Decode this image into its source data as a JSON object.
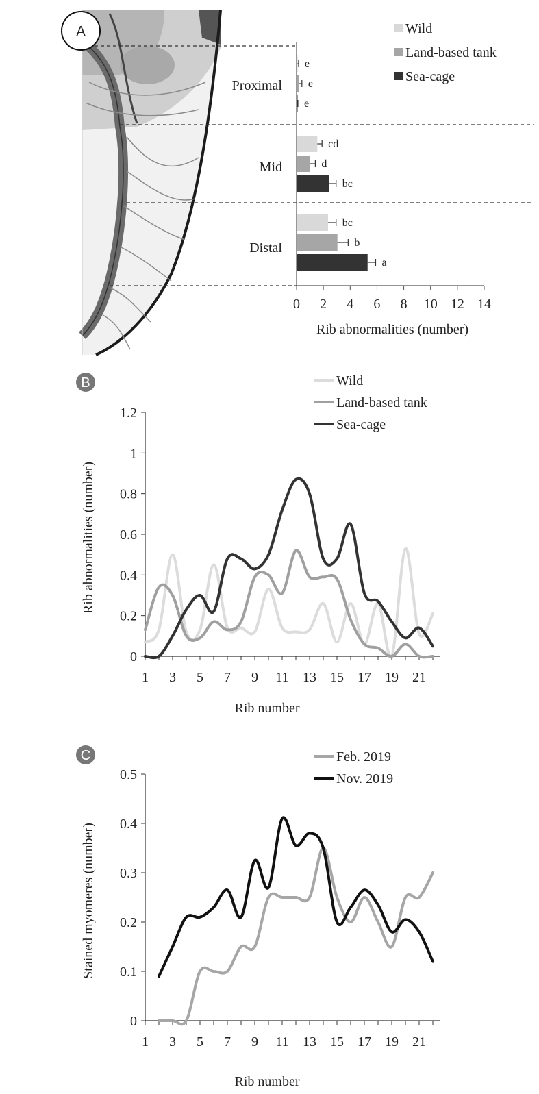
{
  "panel_a": {
    "label": "A",
    "legend": [
      {
        "name": "Wild",
        "color": "#d9d9d9"
      },
      {
        "name": "Land-based tank",
        "color": "#a6a6a6"
      },
      {
        "name": "Sea-cage",
        "color": "#333333"
      }
    ],
    "xlabel": "Rib abnormalities (number)"
  },
  "panel_b": {
    "label": "B",
    "ylabel": "Rib abnormalities (number)",
    "xlabel": "Rib number"
  },
  "panel_c": {
    "label": "C",
    "ylabel": "Stained myomeres (number)",
    "xlabel": "Rib number"
  },
  "chart_data": [
    {
      "type": "bar",
      "orientation": "horizontal",
      "groups": [
        "Proximal",
        "Mid",
        "Distal"
      ],
      "series": [
        {
          "name": "Wild",
          "values": [
            0.05,
            1.55,
            2.35
          ],
          "errors": [
            0.1,
            0.35,
            0.6
          ],
          "letters": [
            "e",
            "cd",
            "bc"
          ],
          "color": "#d9d9d9"
        },
        {
          "name": "Land-based tank",
          "values": [
            0.2,
            1.0,
            3.05
          ],
          "errors": [
            0.2,
            0.4,
            0.8
          ],
          "letters": [
            "e",
            "d",
            "b"
          ],
          "color": "#a6a6a6"
        },
        {
          "name": "Sea-cage",
          "values": [
            0.05,
            2.45,
            5.3
          ],
          "errors": [
            0.05,
            0.5,
            0.6
          ],
          "letters": [
            "e",
            "bc",
            "a"
          ],
          "color": "#333333"
        }
      ],
      "xlim": [
        0,
        14
      ],
      "xticks": [
        "0",
        "2",
        "4",
        "6",
        "8",
        "10",
        "12",
        "14"
      ],
      "xlabel": "Rib abnormalities (number)",
      "legend_position": "top-right"
    },
    {
      "type": "line",
      "x": [
        1,
        2,
        3,
        4,
        5,
        6,
        7,
        8,
        9,
        10,
        11,
        12,
        13,
        14,
        15,
        16,
        17,
        18,
        19,
        20,
        21,
        22
      ],
      "series": [
        {
          "name": "Wild",
          "color": "#dcdcdc",
          "values": [
            0.07,
            0.13,
            0.5,
            0.12,
            0.13,
            0.45,
            0.14,
            0.14,
            0.12,
            0.33,
            0.14,
            0.12,
            0.13,
            0.26,
            0.07,
            0.26,
            0.06,
            0.26,
            0.0,
            0.53,
            0.11,
            0.21
          ]
        },
        {
          "name": "Land-based tank",
          "color": "#a0a0a0",
          "values": [
            0.13,
            0.34,
            0.3,
            0.1,
            0.09,
            0.17,
            0.13,
            0.17,
            0.39,
            0.4,
            0.31,
            0.52,
            0.39,
            0.39,
            0.38,
            0.18,
            0.06,
            0.04,
            0.0,
            0.06,
            0.0,
            0.0
          ]
        },
        {
          "name": "Sea-cage",
          "color": "#333333",
          "values": [
            0,
            0,
            0.1,
            0.23,
            0.3,
            0.22,
            0.48,
            0.48,
            0.43,
            0.5,
            0.72,
            0.87,
            0.8,
            0.48,
            0.48,
            0.65,
            0.31,
            0.27,
            0.17,
            0.09,
            0.14,
            0.05
          ]
        }
      ],
      "ylim": [
        0,
        1.2
      ],
      "yticks": [
        "0",
        "0.2",
        "0.4",
        "0.6",
        "0.8",
        "1",
        "1.2"
      ],
      "xticks": [
        "1",
        "3",
        "5",
        "7",
        "9",
        "11",
        "13",
        "15",
        "17",
        "19",
        "21"
      ],
      "xlabel": "Rib number",
      "ylabel": "Rib abnormalities (number)",
      "legend_position": "top-right"
    },
    {
      "type": "line",
      "x": [
        2,
        3,
        4,
        5,
        6,
        7,
        8,
        9,
        10,
        11,
        12,
        13,
        14,
        15,
        16,
        17,
        18,
        19,
        20,
        21,
        22
      ],
      "series": [
        {
          "name": "Feb. 2019",
          "color": "#a6a6a6",
          "values": [
            0,
            0,
            0,
            0.1,
            0.1,
            0.1,
            0.15,
            0.15,
            0.25,
            0.25,
            0.25,
            0.25,
            0.35,
            0.25,
            0.2,
            0.25,
            0.2,
            0.15,
            0.25,
            0.25,
            0.3
          ]
        },
        {
          "name": "Nov. 2019",
          "color": "#111111",
          "values": [
            0.09,
            0.15,
            0.21,
            0.21,
            0.23,
            0.265,
            0.21,
            0.325,
            0.27,
            0.41,
            0.355,
            0.38,
            0.35,
            0.2,
            0.23,
            0.265,
            0.235,
            0.18,
            0.205,
            0.18,
            0.12
          ]
        }
      ],
      "ylim": [
        0,
        0.5
      ],
      "yticks": [
        "0",
        "0.1",
        "0.2",
        "0.3",
        "0.4",
        "0.5"
      ],
      "xticks": [
        "1",
        "3",
        "5",
        "7",
        "9",
        "11",
        "13",
        "15",
        "17",
        "19",
        "21"
      ],
      "xlabel": "Rib number",
      "ylabel": "Stained myomeres (number)",
      "legend_position": "top-right"
    }
  ]
}
